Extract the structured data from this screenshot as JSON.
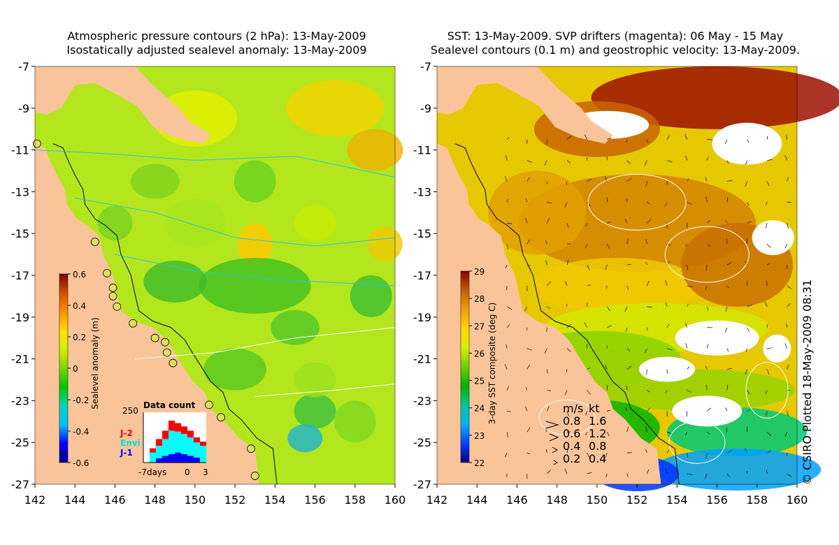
{
  "left_panel": {
    "title_line1": "Atmospheric pressure contours (2 hPa): 13-May-2009",
    "title_line2": "Isostatically adjusted sealevel anomaly: 13-May-2009",
    "colorbar_label": "Sealevel anomaly (m)",
    "colorbar_ticks": [
      "0.6",
      "0.4",
      "0.2",
      "0",
      "-0.2",
      "-0.4",
      "-0.6"
    ],
    "data_count": {
      "title": "Data count",
      "ymax_label": "250",
      "x_labels": [
        "-7days",
        "0",
        "3"
      ],
      "legend": [
        {
          "name": "J-2",
          "color": "#ff0000"
        },
        {
          "name": "Envi",
          "color": "#00ffff"
        },
        {
          "name": "J-1",
          "color": "#0000ff"
        }
      ]
    }
  },
  "right_panel": {
    "title_line1": "SST: 13-May-2009. SVP drifters (magenta): 06 May - 15 May",
    "title_line2": "Sealevel contours (0.1 m) and geostrophic velocity: 13-May-2009.",
    "colorbar_label": "3-day SST composite (deg C)",
    "colorbar_ticks": [
      "29",
      "28",
      "27",
      "26",
      "25",
      "24",
      "23",
      "22"
    ],
    "velocity_legend": {
      "header_ms": "m/s",
      "header_kt": "kt",
      "rows": [
        {
          "ms": "0.8",
          "kt": "1.6"
        },
        {
          "ms": "0.6",
          "kt": "1.2"
        },
        {
          "ms": "0.4",
          "kt": "0.8"
        },
        {
          "ms": "0.2",
          "kt": "0.4"
        }
      ]
    },
    "copyright": "© CSIRO Plotted 18-May-2009 08:31"
  },
  "axes": {
    "lat_ticks": [
      "-7",
      "-9",
      "-11",
      "-13",
      "-15",
      "-17",
      "-19",
      "-21",
      "-23",
      "-25",
      "-27"
    ],
    "lon_ticks": [
      "142",
      "144",
      "146",
      "148",
      "150",
      "152",
      "154",
      "156",
      "158",
      "160"
    ]
  },
  "colors": {
    "land": "#f9c49a",
    "sla_ramp": [
      "#00007f",
      "#0000ff",
      "#00bfff",
      "#00d5c0",
      "#00c800",
      "#7cd400",
      "#d2f000",
      "#ffdc00",
      "#ff9000",
      "#d05000",
      "#7f0000"
    ],
    "sst_ramp": [
      "#00007f",
      "#0040ff",
      "#00b4ff",
      "#00c8a0",
      "#00b400",
      "#70d000",
      "#d8f000",
      "#ffd800",
      "#f0a000",
      "#c06000",
      "#8b0000"
    ]
  }
}
